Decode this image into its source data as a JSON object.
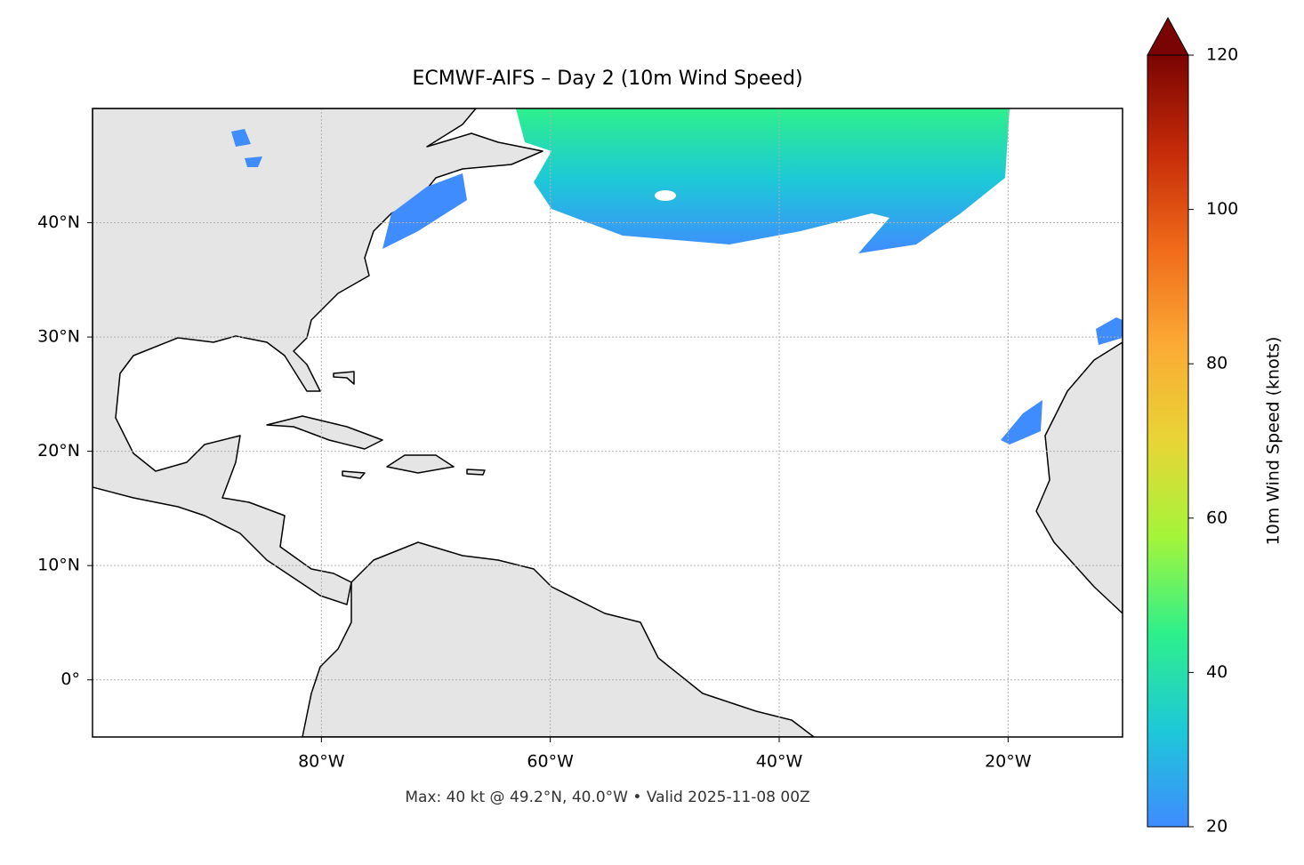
{
  "chart_data": {
    "type": "map",
    "title": "ECMWF-AIFS – Day 2 (10m Wind Speed)",
    "footer": "Max: 40 kt @ 49.2°N, 40.0°W • Valid 2025-11-08 00Z",
    "xlim": [
      -100,
      -10
    ],
    "ylim": [
      -5,
      50
    ],
    "xticks": [
      {
        "value": -80,
        "label": "80°W"
      },
      {
        "value": -60,
        "label": "60°W"
      },
      {
        "value": -40,
        "label": "40°W"
      },
      {
        "value": -20,
        "label": "20°W"
      }
    ],
    "yticks": [
      {
        "value": 0,
        "label": "0°"
      },
      {
        "value": 10,
        "label": "10°N"
      },
      {
        "value": 20,
        "label": "20°N"
      },
      {
        "value": 30,
        "label": "30°N"
      },
      {
        "value": 40,
        "label": "40°N"
      }
    ],
    "grid": true,
    "colorbar": {
      "label": "10m Wind Speed (knots)",
      "lim": [
        20,
        120
      ],
      "ticks": [
        20,
        40,
        60,
        80,
        100,
        120
      ],
      "colors": [
        "#3f8cff",
        "#1dc8d8",
        "#2df08c",
        "#a4f53a",
        "#e8d535",
        "#fbaa35",
        "#f06a1a",
        "#c52b08",
        "#7a0403"
      ]
    }
  }
}
